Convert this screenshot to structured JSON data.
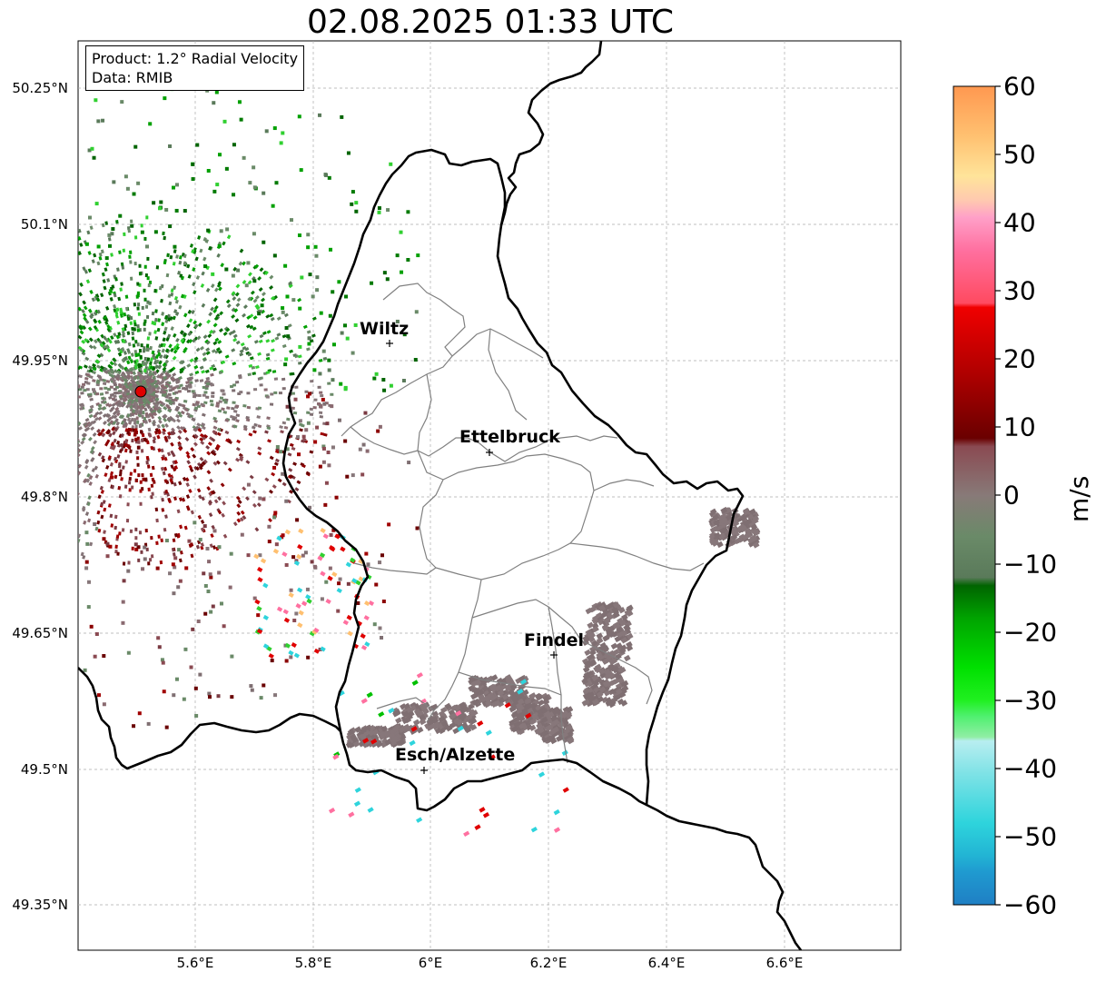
{
  "title": "02.08.2025 01:33 UTC",
  "info_box": {
    "product": "Product: 1.2° Radial Velocity",
    "data": "Data: RMIB"
  },
  "axes": {
    "lat_labels": [
      "50.25°N",
      "50.1°N",
      "49.95°N",
      "49.8°N",
      "49.65°N",
      "49.5°N",
      "49.35°N"
    ],
    "lon_labels": [
      "5.6°E",
      "5.8°E",
      "6°E",
      "6.2°E",
      "6.4°E",
      "6.6°E"
    ],
    "grid": true
  },
  "colorbar": {
    "unit": "m/s",
    "min": -60,
    "max": 60,
    "ticks": [
      "60",
      "50",
      "40",
      "30",
      "20",
      "10",
      "0",
      "−10",
      "−20",
      "−30",
      "−40",
      "−50",
      "−60"
    ]
  },
  "cities": [
    {
      "name": "Wiltz"
    },
    {
      "name": "Ettelbruck"
    },
    {
      "name": "Findel"
    },
    {
      "name": "Esch/Alzette"
    }
  ],
  "colors": {
    "approaching_green": "#00c000",
    "receding_red": "#8b0000",
    "near_zero": "#7f6f72",
    "radar_site": "#e00000"
  }
}
